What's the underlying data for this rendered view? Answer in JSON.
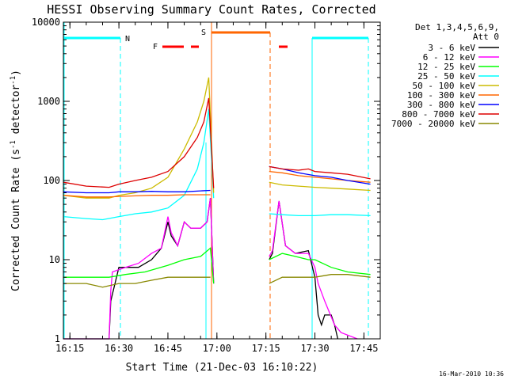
{
  "chart_data": {
    "type": "line",
    "title": "HESSI Observing Summary Count Rates, Corrected",
    "xlabel": "Start Time (21-Dec-03 16:10:22)",
    "ylabel_main": "Corrected Count Rate (s",
    "ylabel_sup1": "-1",
    "ylabel_mid": " detector",
    "ylabel_sup2": "-1",
    "ylabel_end": ")",
    "yscale": "log",
    "ylim": [
      1,
      10000
    ],
    "xlim_min": [
      13,
      110
    ],
    "x_ticks": [
      {
        "min": 15,
        "label": "16:15"
      },
      {
        "min": 30,
        "label": "16:30"
      },
      {
        "min": 45,
        "label": "16:45"
      },
      {
        "min": 60,
        "label": "17:00"
      },
      {
        "min": 75,
        "label": "17:15"
      },
      {
        "min": 90,
        "label": "17:30"
      },
      {
        "min": 105,
        "label": "17:45"
      }
    ],
    "y_ticks": [
      {
        "v": 1,
        "label": "1"
      },
      {
        "v": 10,
        "label": "10"
      },
      {
        "v": 100,
        "label": "100"
      },
      {
        "v": 1000,
        "label": "1000"
      },
      {
        "v": 10000,
        "label": "10000"
      }
    ],
    "legend": {
      "header1": "Det 1,3,4,5,6,9,",
      "header2": "Att 0",
      "placement": "top-right"
    },
    "series": [
      {
        "name": "3 - 6 keV",
        "color": "#000000",
        "points": [
          [
            13,
            1
          ],
          [
            27,
            1
          ],
          [
            27.5,
            3
          ],
          [
            30,
            8
          ],
          [
            36,
            8
          ],
          [
            40,
            10
          ],
          [
            43,
            14
          ],
          [
            45,
            30
          ],
          [
            46,
            20
          ],
          [
            48,
            15
          ],
          [
            50,
            30
          ],
          [
            52,
            25
          ],
          [
            55,
            25
          ],
          [
            57,
            30
          ],
          [
            58,
            60
          ],
          [
            59,
            5
          ]
        ],
        "points2": [
          [
            76,
            10
          ],
          [
            77,
            12
          ],
          [
            79,
            55
          ],
          [
            81,
            15
          ],
          [
            84,
            12
          ],
          [
            88,
            13
          ],
          [
            90,
            6
          ],
          [
            91,
            2
          ],
          [
            92,
            1.5
          ],
          [
            93,
            2
          ],
          [
            95,
            2
          ],
          [
            96,
            1.5
          ],
          [
            97,
            1
          ]
        ]
      },
      {
        "name": "6 - 12 keV",
        "color": "#ff00ff",
        "points": [
          [
            13,
            1
          ],
          [
            27,
            1
          ],
          [
            27.5,
            4
          ],
          [
            28,
            7
          ],
          [
            32,
            8
          ],
          [
            36,
            9
          ],
          [
            40,
            12
          ],
          [
            43,
            14
          ],
          [
            45,
            35
          ],
          [
            46,
            22
          ],
          [
            48,
            15
          ],
          [
            50,
            30
          ],
          [
            52,
            25
          ],
          [
            55,
            25
          ],
          [
            57,
            30
          ],
          [
            58,
            60
          ],
          [
            59,
            5
          ]
        ],
        "points2": [
          [
            76,
            11
          ],
          [
            77,
            13
          ],
          [
            79,
            55
          ],
          [
            81,
            15
          ],
          [
            84,
            12
          ],
          [
            88,
            12
          ],
          [
            90,
            8
          ],
          [
            91,
            5
          ],
          [
            93,
            3
          ],
          [
            96,
            1.5
          ],
          [
            98,
            1.2
          ],
          [
            103,
            1
          ]
        ]
      },
      {
        "name": "12 - 25 keV",
        "color": "#00ff00",
        "points": [
          [
            13,
            6
          ],
          [
            27,
            6
          ],
          [
            32,
            6.5
          ],
          [
            38,
            7
          ],
          [
            45,
            8.5
          ],
          [
            50,
            10
          ],
          [
            55,
            11
          ],
          [
            58,
            14
          ],
          [
            59,
            5
          ]
        ],
        "points2": [
          [
            76,
            10
          ],
          [
            80,
            12
          ],
          [
            84,
            11
          ],
          [
            88,
            10
          ],
          [
            90,
            10
          ],
          [
            95,
            8
          ],
          [
            100,
            7
          ],
          [
            107,
            6.5
          ]
        ]
      },
      {
        "name": "25 - 50 keV",
        "color": "#00ffff",
        "points": [
          [
            13,
            35
          ],
          [
            20,
            33
          ],
          [
            25,
            32
          ],
          [
            30,
            35
          ],
          [
            35,
            38
          ],
          [
            40,
            40
          ],
          [
            45,
            45
          ],
          [
            50,
            65
          ],
          [
            54,
            140
          ],
          [
            56,
            300
          ],
          [
            57.5,
            800
          ],
          [
            59,
            60
          ]
        ],
        "points2": [
          [
            76,
            38
          ],
          [
            80,
            37
          ],
          [
            85,
            36
          ],
          [
            90,
            36
          ],
          [
            95,
            37
          ],
          [
            100,
            37
          ],
          [
            107,
            36
          ]
        ]
      },
      {
        "name": "50 - 100 keV",
        "color": "#ccbb00",
        "points": [
          [
            13,
            65
          ],
          [
            20,
            60
          ],
          [
            27,
            60
          ],
          [
            30,
            65
          ],
          [
            35,
            70
          ],
          [
            40,
            80
          ],
          [
            45,
            110
          ],
          [
            50,
            250
          ],
          [
            54,
            550
          ],
          [
            56,
            1000
          ],
          [
            57.5,
            2000
          ],
          [
            59,
            70
          ]
        ],
        "points2": [
          [
            76,
            95
          ],
          [
            80,
            88
          ],
          [
            85,
            85
          ],
          [
            90,
            82
          ],
          [
            95,
            80
          ],
          [
            100,
            78
          ],
          [
            107,
            75
          ]
        ]
      },
      {
        "name": "100 - 300 keV",
        "color": "#ff6600",
        "points": [
          [
            13,
            65
          ],
          [
            20,
            62
          ],
          [
            27,
            62
          ],
          [
            30,
            63
          ],
          [
            35,
            64
          ],
          [
            40,
            65
          ],
          [
            45,
            65
          ],
          [
            50,
            66
          ],
          [
            55,
            66
          ],
          [
            58,
            66
          ]
        ],
        "points2": [
          [
            76,
            130
          ],
          [
            80,
            125
          ],
          [
            85,
            115
          ],
          [
            90,
            110
          ],
          [
            95,
            105
          ],
          [
            100,
            100
          ],
          [
            107,
            95
          ]
        ]
      },
      {
        "name": "300 - 800 keV",
        "color": "#0000ff",
        "points": [
          [
            13,
            72
          ],
          [
            20,
            70
          ],
          [
            27,
            70
          ],
          [
            30,
            72
          ],
          [
            35,
            72
          ],
          [
            40,
            73
          ],
          [
            45,
            72
          ],
          [
            50,
            72
          ],
          [
            55,
            74
          ],
          [
            58,
            75
          ]
        ],
        "points2": [
          [
            76,
            150
          ],
          [
            80,
            140
          ],
          [
            85,
            125
          ],
          [
            90,
            115
          ],
          [
            95,
            110
          ],
          [
            100,
            100
          ],
          [
            107,
            90
          ]
        ]
      },
      {
        "name": "800 - 7000 keV",
        "color": "#dd0000",
        "points": [
          [
            13,
            95
          ],
          [
            20,
            85
          ],
          [
            27,
            82
          ],
          [
            30,
            90
          ],
          [
            35,
            100
          ],
          [
            40,
            110
          ],
          [
            45,
            130
          ],
          [
            50,
            200
          ],
          [
            54,
            350
          ],
          [
            56,
            550
          ],
          [
            57.5,
            1100
          ],
          [
            59,
            80
          ]
        ],
        "points2": [
          [
            76,
            150
          ],
          [
            80,
            140
          ],
          [
            85,
            135
          ],
          [
            88,
            140
          ],
          [
            90,
            130
          ],
          [
            95,
            125
          ],
          [
            100,
            120
          ],
          [
            107,
            105
          ]
        ]
      },
      {
        "name": "7000 - 20000 keV",
        "color": "#888800",
        "points": [
          [
            13,
            5
          ],
          [
            20,
            5
          ],
          [
            25,
            4.5
          ],
          [
            30,
            5
          ],
          [
            35,
            5
          ],
          [
            40,
            5.5
          ],
          [
            45,
            6
          ],
          [
            50,
            6
          ],
          [
            55,
            6
          ],
          [
            58,
            6
          ]
        ],
        "points2": [
          [
            76,
            5
          ],
          [
            80,
            6
          ],
          [
            85,
            6
          ],
          [
            90,
            6
          ],
          [
            95,
            6.5
          ],
          [
            100,
            6.5
          ],
          [
            107,
            6
          ]
        ]
      }
    ],
    "annotations": {
      "n_label": "N",
      "f_label": "F",
      "s_label": "S",
      "timestamp": "16-Mar-2010 10:36"
    }
  }
}
